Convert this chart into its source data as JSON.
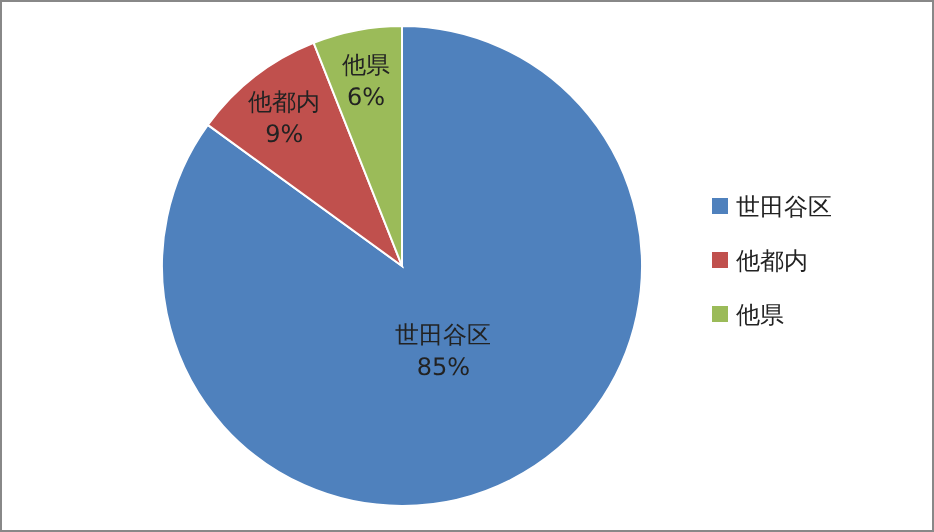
{
  "chart_data": {
    "type": "pie",
    "categories": [
      "世田谷区",
      "他都内",
      "他県"
    ],
    "values": [
      85,
      9,
      6
    ],
    "colors": [
      "#4f81bd",
      "#c0504d",
      "#9bbb59"
    ],
    "value_labels": [
      "85%",
      "9%",
      "6%"
    ],
    "legend": "right"
  }
}
